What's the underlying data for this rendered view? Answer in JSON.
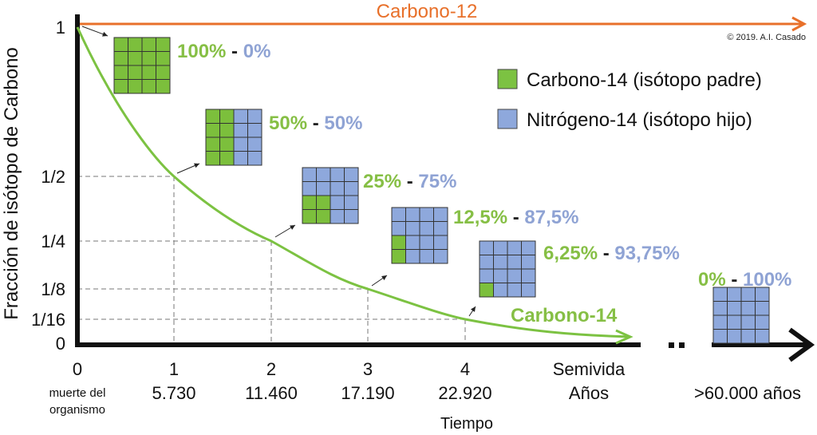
{
  "chart_data": {
    "type": "line",
    "ylabel": "Fracción de isótopo de Carbono",
    "xlabel": "Tiempo",
    "x_ticks": [
      {
        "label": "0",
        "sub": "muerte del organismo"
      },
      {
        "label": "1",
        "sub": "5.730"
      },
      {
        "label": "2",
        "sub": "11.460"
      },
      {
        "label": "3",
        "sub": "17.190"
      },
      {
        "label": "4",
        "sub": "22.920"
      }
    ],
    "x_axis_names": [
      "Semivida",
      "Años"
    ],
    "x_far_label": ">60.000 años",
    "y_ticks": [
      "1",
      "1/2",
      "1/4",
      "1/8",
      "1/16",
      "0"
    ],
    "series": [
      {
        "name": "Carbono-14",
        "x": [
          0,
          1,
          2,
          3,
          4
        ],
        "y": [
          1,
          0.5,
          0.25,
          0.125,
          0.0625
        ],
        "color": "#7cc242"
      },
      {
        "name": "Carbono-12",
        "x": [
          0,
          4
        ],
        "y": [
          1,
          1
        ],
        "color": "#e8702a"
      }
    ],
    "stages": [
      {
        "parent_pct": "100%",
        "child_pct": "0%",
        "green_cells": 16
      },
      {
        "parent_pct": "50%",
        "child_pct": "50%",
        "green_cells": 8
      },
      {
        "parent_pct": "25%",
        "child_pct": "75%",
        "green_cells": 4
      },
      {
        "parent_pct": "12,5%",
        "child_pct": "87,5%",
        "green_cells": 2
      },
      {
        "parent_pct": "6,25%",
        "child_pct": "93,75%",
        "green_cells": 1
      },
      {
        "parent_pct": "0%",
        "child_pct": "100%",
        "green_cells": 0
      }
    ],
    "legend": [
      {
        "label": "Carbono-14 (isótopo padre)",
        "color": "#7cc242"
      },
      {
        "label": "Nitrógeno-14 (isótopo hijo)",
        "color": "#8ea8dc"
      }
    ],
    "legend_position": "top-right",
    "separator": "-"
  },
  "copyright": "© 2019. A.I. Casado",
  "colors": {
    "green_text": "#86bf45",
    "blue_text": "#8fa3d4",
    "orange": "#e8702a"
  }
}
